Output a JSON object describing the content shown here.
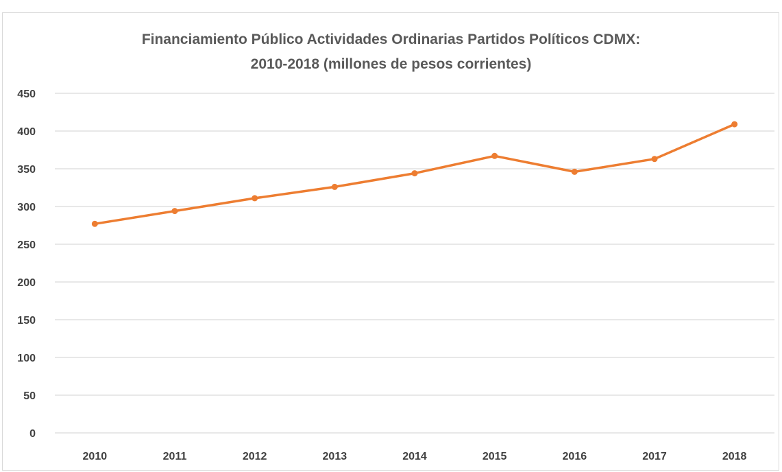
{
  "chart_data": {
    "type": "line",
    "title_line1": "Financiamiento Público Actividades Ordinarias Partidos Políticos CDMX:",
    "title_line2": "2010-2018 (millones de pesos corrientes)",
    "categories": [
      "2010",
      "2011",
      "2012",
      "2013",
      "2014",
      "2015",
      "2016",
      "2017",
      "2018"
    ],
    "series": [
      {
        "values": [
          277,
          294,
          311,
          326,
          344,
          367,
          346,
          363,
          409
        ]
      }
    ],
    "ylim": [
      0,
      450
    ],
    "yticks": [
      "0",
      "50",
      "100",
      "150",
      "200",
      "250",
      "300",
      "350",
      "400",
      "450"
    ],
    "xlabel": "",
    "ylabel": "",
    "grid": true,
    "legend": "none",
    "line_color": "#ed7d31",
    "grid_color": "#d9d9d9"
  }
}
